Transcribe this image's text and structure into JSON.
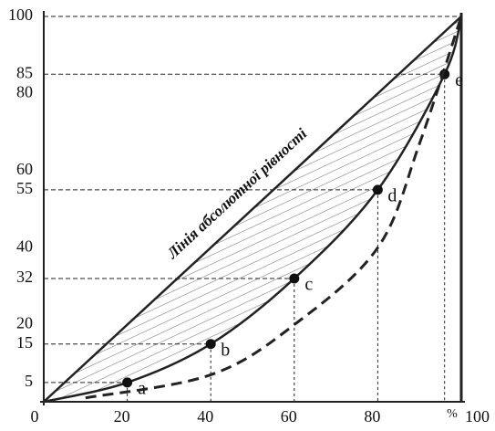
{
  "chart_data": {
    "type": "line",
    "xlim": [
      0,
      100
    ],
    "ylim": [
      0,
      100
    ],
    "xticks": [
      0,
      20,
      40,
      60,
      80,
      100
    ],
    "yticks": [
      5,
      15,
      20,
      32,
      40,
      55,
      60,
      80,
      85,
      100
    ],
    "x_unit": "%",
    "series": [
      {
        "name": "Лінія абсолютної рівності",
        "color": "#222",
        "x": [
          0,
          100
        ],
        "values": [
          0,
          100
        ]
      },
      {
        "color": "#222",
        "x": [
          0,
          20,
          40,
          60,
          80,
          96,
          100
        ],
        "values": [
          0,
          5,
          15,
          32,
          55,
          85,
          100
        ],
        "point_labels": [
          null,
          "a",
          "b",
          "c",
          "d",
          "e",
          null
        ]
      },
      {
        "color": "#222",
        "dashed": true,
        "x": [
          10,
          40,
          60,
          80,
          90,
          100
        ],
        "values": [
          1,
          7,
          20,
          40,
          67,
          100
        ]
      }
    ]
  }
}
